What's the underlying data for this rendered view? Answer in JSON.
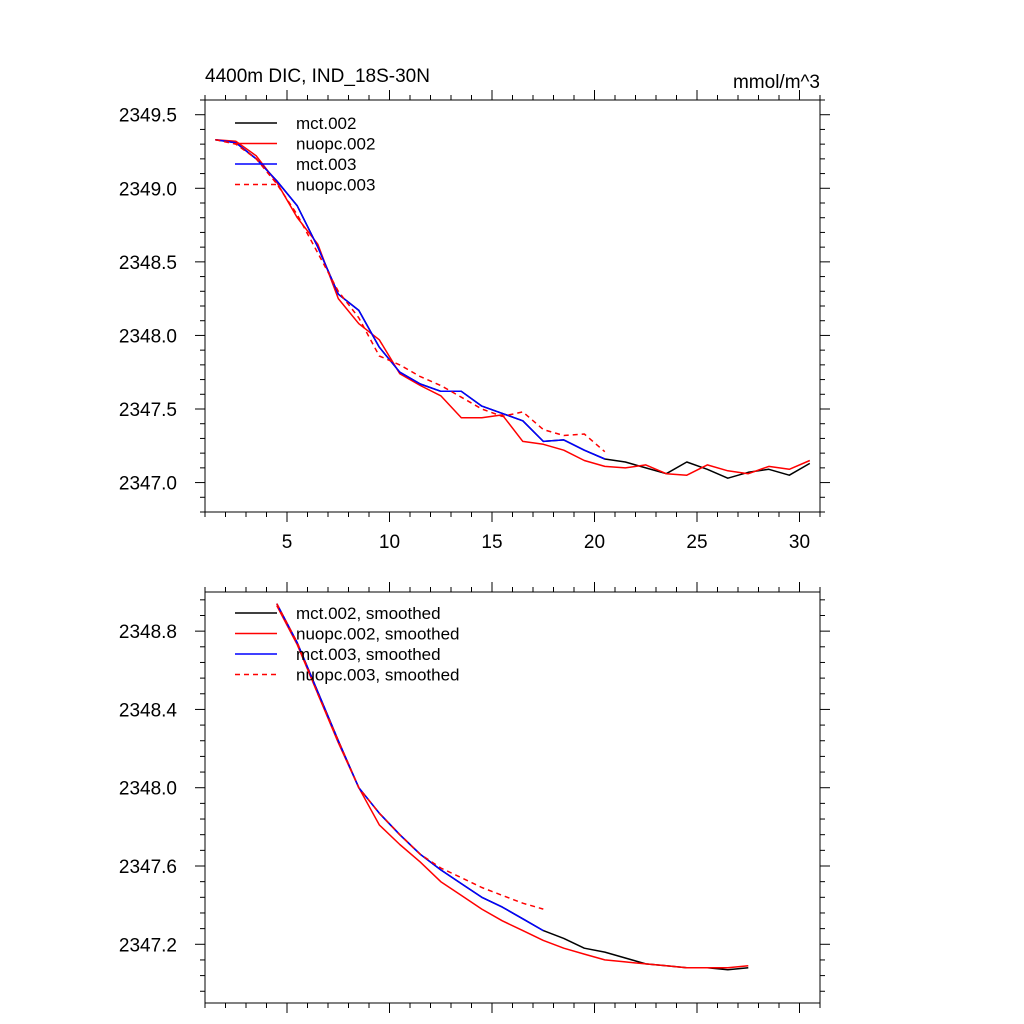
{
  "colors": {
    "black": "#000000",
    "red": "#ff0000",
    "blue": "#0000ff"
  },
  "chart_data": [
    {
      "type": "line",
      "title": "4400m DIC, IND_18S-30N",
      "units": "mmol/m^3",
      "xlim": [
        1,
        31
      ],
      "ylim": [
        2346.8,
        2349.6
      ],
      "xticks": [
        5,
        10,
        15,
        20,
        25,
        30
      ],
      "xtick_labels": [
        "5",
        "10",
        "15",
        "20",
        "25",
        "30"
      ],
      "yticks": [
        2347.0,
        2347.5,
        2348.0,
        2348.5,
        2349.0,
        2349.5
      ],
      "ytick_labels": [
        "2347.0",
        "2347.5",
        "2348.0",
        "2348.5",
        "2349.0",
        "2349.5"
      ],
      "legend_position": "top-left",
      "series": [
        {
          "name": "mct.002",
          "color": "#000000",
          "dash": "solid",
          "x": [
            1.5,
            2.5,
            3.5,
            4.5,
            5.5,
            6.5,
            7.5,
            8.5,
            9.5,
            10.5,
            11.5,
            12.5,
            13.5,
            14.5,
            15.5,
            16.5,
            17.5,
            18.5,
            19.5,
            20.5,
            21.5,
            22.5,
            23.5,
            24.5,
            25.5,
            26.5,
            27.5,
            28.5,
            29.5,
            30.5
          ],
          "y": [
            2349.33,
            2349.31,
            2349.2,
            2349.05,
            2348.88,
            2348.6,
            2348.28,
            2348.17,
            2347.92,
            2347.75,
            2347.67,
            2347.62,
            2347.62,
            2347.52,
            2347.47,
            2347.42,
            2347.28,
            2347.29,
            2347.22,
            2347.16,
            2347.14,
            2347.1,
            2347.06,
            2347.14,
            2347.09,
            2347.03,
            2347.07,
            2347.09,
            2347.05,
            2347.13
          ]
        },
        {
          "name": "nuopc.002",
          "color": "#ff0000",
          "dash": "solid",
          "x": [
            1.5,
            2.5,
            3.5,
            4.5,
            5.5,
            6.5,
            7.5,
            8.5,
            9.5,
            10.5,
            11.5,
            12.5,
            13.5,
            14.5,
            15.5,
            16.5,
            17.5,
            18.5,
            19.5,
            20.5,
            21.5,
            22.5,
            23.5,
            24.5,
            25.5,
            26.5,
            27.5,
            28.5,
            29.5,
            30.5
          ],
          "y": [
            2349.33,
            2349.32,
            2349.22,
            2349.04,
            2348.8,
            2348.62,
            2348.25,
            2348.08,
            2347.97,
            2347.74,
            2347.66,
            2347.59,
            2347.44,
            2347.44,
            2347.46,
            2347.28,
            2347.26,
            2347.22,
            2347.15,
            2347.11,
            2347.1,
            2347.12,
            2347.06,
            2347.05,
            2347.12,
            2347.08,
            2347.06,
            2347.11,
            2347.09,
            2347.15
          ]
        },
        {
          "name": "mct.003",
          "color": "#0000ff",
          "dash": "solid",
          "x": [
            1.5,
            2.5,
            3.5,
            4.5,
            5.5,
            6.5,
            7.5,
            8.5,
            9.5,
            10.5,
            11.5,
            12.5,
            13.5,
            14.5,
            15.5,
            16.5,
            17.5,
            18.5,
            19.5,
            20.5
          ],
          "y": [
            2349.33,
            2349.31,
            2349.2,
            2349.05,
            2348.88,
            2348.6,
            2348.28,
            2348.17,
            2347.92,
            2347.75,
            2347.67,
            2347.62,
            2347.62,
            2347.52,
            2347.47,
            2347.42,
            2347.28,
            2347.29,
            2347.22,
            2347.16
          ]
        },
        {
          "name": "nuopc.003",
          "color": "#ff0000",
          "dash": "dashed",
          "x": [
            1.5,
            2.5,
            3.5,
            4.5,
            5.5,
            6.5,
            7.5,
            8.5,
            9.5,
            10.5,
            11.5,
            12.5,
            13.5,
            14.5,
            15.5,
            16.5,
            17.5,
            18.5,
            19.5,
            20.5
          ],
          "y": [
            2349.33,
            2349.3,
            2349.2,
            2349.03,
            2348.82,
            2348.56,
            2348.3,
            2348.12,
            2347.86,
            2347.8,
            2347.72,
            2347.66,
            2347.58,
            2347.5,
            2347.45,
            2347.48,
            2347.36,
            2347.32,
            2347.33,
            2347.21
          ]
        }
      ]
    },
    {
      "type": "line",
      "title": "",
      "xlim": [
        1,
        31
      ],
      "ylim": [
        2346.9,
        2349.0
      ],
      "xticks": [
        5,
        10,
        15,
        20,
        25,
        30
      ],
      "xtick_labels": [],
      "yticks": [
        2347.2,
        2347.6,
        2348.0,
        2348.4,
        2348.8
      ],
      "ytick_labels": [
        "2347.2",
        "2347.6",
        "2348.0",
        "2348.4",
        "2348.8"
      ],
      "legend_position": "top-left",
      "series": [
        {
          "name": "mct.002, smoothed",
          "color": "#000000",
          "dash": "solid",
          "x": [
            4.5,
            5.5,
            6.5,
            7.5,
            8.5,
            9.5,
            10.5,
            11.5,
            12.5,
            13.5,
            14.5,
            15.5,
            16.5,
            17.5,
            18.5,
            19.5,
            20.5,
            21.5,
            22.5,
            23.5,
            24.5,
            25.5,
            26.5,
            27.5
          ],
          "y": [
            2348.94,
            2348.74,
            2348.49,
            2348.24,
            2348.0,
            2347.87,
            2347.76,
            2347.66,
            2347.58,
            2347.51,
            2347.44,
            2347.39,
            2347.33,
            2347.27,
            2347.23,
            2347.18,
            2347.16,
            2347.13,
            2347.1,
            2347.09,
            2347.08,
            2347.08,
            2347.07,
            2347.08
          ]
        },
        {
          "name": "nuopc.002, smoothed",
          "color": "#ff0000",
          "dash": "solid",
          "x": [
            4.5,
            5.5,
            6.5,
            7.5,
            8.5,
            9.5,
            10.5,
            11.5,
            12.5,
            13.5,
            14.5,
            15.5,
            16.5,
            17.5,
            18.5,
            19.5,
            20.5,
            21.5,
            22.5,
            23.5,
            24.5,
            25.5,
            26.5,
            27.5
          ],
          "y": [
            2348.93,
            2348.73,
            2348.48,
            2348.23,
            2348.0,
            2347.81,
            2347.71,
            2347.62,
            2347.52,
            2347.45,
            2347.38,
            2347.32,
            2347.27,
            2347.22,
            2347.18,
            2347.15,
            2347.12,
            2347.11,
            2347.1,
            2347.09,
            2347.08,
            2347.08,
            2347.08,
            2347.09
          ]
        },
        {
          "name": "mct.003, smoothed",
          "color": "#0000ff",
          "dash": "solid",
          "x": [
            4.5,
            5.5,
            6.5,
            7.5,
            8.5,
            9.5,
            10.5,
            11.5,
            12.5,
            13.5,
            14.5,
            15.5,
            16.5,
            17.5
          ],
          "y": [
            2348.94,
            2348.74,
            2348.49,
            2348.24,
            2348.0,
            2347.87,
            2347.76,
            2347.66,
            2347.58,
            2347.51,
            2347.44,
            2347.39,
            2347.33,
            2347.27
          ]
        },
        {
          "name": "nuopc.003, smoothed",
          "color": "#ff0000",
          "dash": "dashed",
          "x": [
            4.5,
            5.5,
            6.5,
            7.5,
            8.5,
            9.5,
            10.5,
            11.5,
            12.5,
            13.5,
            14.5,
            15.5,
            16.5,
            17.5
          ],
          "y": [
            2348.94,
            2348.74,
            2348.48,
            2348.24,
            2348.0,
            2347.87,
            2347.76,
            2347.66,
            2347.59,
            2347.54,
            2347.49,
            2347.45,
            2347.41,
            2347.38
          ]
        }
      ]
    }
  ]
}
